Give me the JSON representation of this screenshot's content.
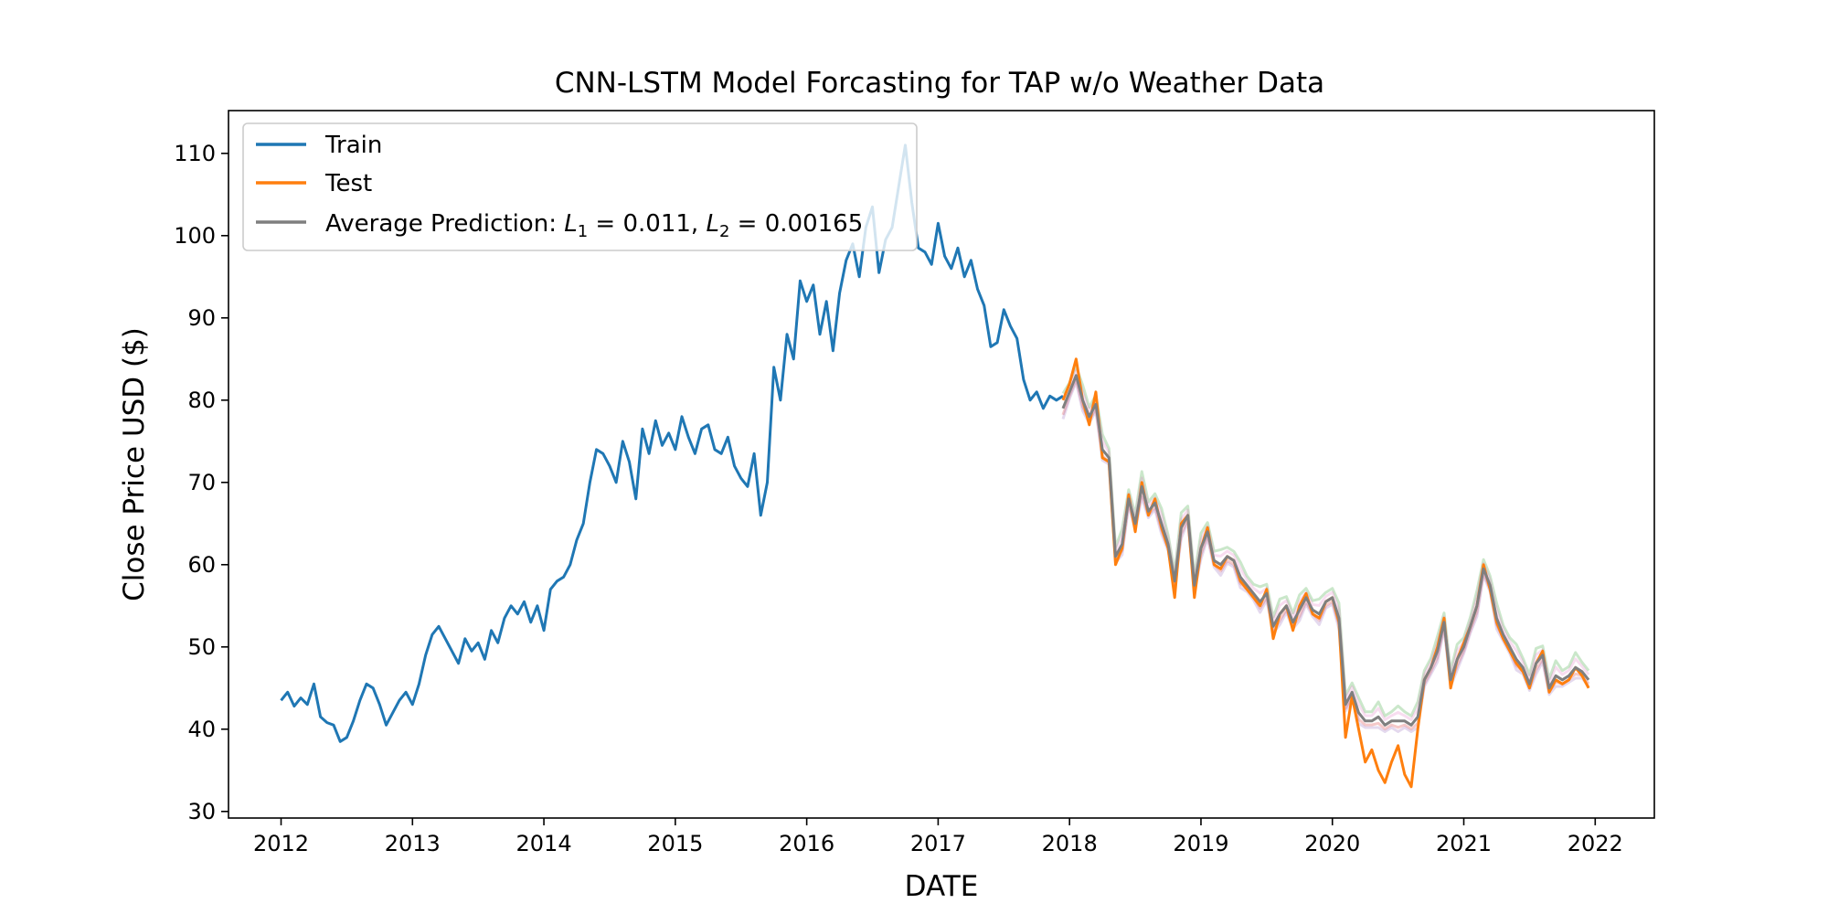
{
  "chart_data": {
    "type": "line",
    "title": "CNN-LSTM Model Forcasting for TAP w/o Weather Data",
    "xlabel": "DATE",
    "ylabel": "Close Price USD ($)",
    "xlim": [
      2011.6,
      2022.45
    ],
    "ylim": [
      29.2,
      115.2
    ],
    "x_ticks": [
      2012,
      2013,
      2014,
      2015,
      2016,
      2017,
      2018,
      2019,
      2020,
      2021,
      2022
    ],
    "x_tick_labels": [
      "2012",
      "2013",
      "2014",
      "2015",
      "2016",
      "2017",
      "2018",
      "2019",
      "2020",
      "2021",
      "2022"
    ],
    "y_ticks": [
      30,
      40,
      50,
      60,
      70,
      80,
      90,
      100,
      110
    ],
    "y_tick_labels": [
      "30",
      "40",
      "50",
      "60",
      "70",
      "80",
      "90",
      "100",
      "110"
    ],
    "grid": false,
    "legend_position": "top-left",
    "legend": {
      "train": "Train",
      "test": "Test",
      "avg_prefix": "Average Prediction: ",
      "l1_symbol": "L",
      "l1_sub": "1",
      "l1_value": " = 0.011, ",
      "l2_symbol": "L",
      "l2_sub": "2",
      "l2_value": " = 0.00165"
    },
    "colors": {
      "train": "#1f77b4",
      "test": "#ff7f0e",
      "average": "#7f7f7f",
      "runs": [
        "#2ca02c",
        "#d62728",
        "#9467bd",
        "#e377c2"
      ]
    },
    "series": [
      {
        "name": "Train",
        "x": [
          2012.0,
          2012.05,
          2012.1,
          2012.15,
          2012.2,
          2012.25,
          2012.3,
          2012.35,
          2012.4,
          2012.45,
          2012.5,
          2012.55,
          2012.6,
          2012.65,
          2012.7,
          2012.75,
          2012.8,
          2012.85,
          2012.9,
          2012.95,
          2013.0,
          2013.05,
          2013.1,
          2013.15,
          2013.2,
          2013.25,
          2013.3,
          2013.35,
          2013.4,
          2013.45,
          2013.5,
          2013.55,
          2013.6,
          2013.65,
          2013.7,
          2013.75,
          2013.8,
          2013.85,
          2013.9,
          2013.95,
          2014.0,
          2014.05,
          2014.1,
          2014.15,
          2014.2,
          2014.25,
          2014.3,
          2014.35,
          2014.4,
          2014.45,
          2014.5,
          2014.55,
          2014.6,
          2014.65,
          2014.7,
          2014.75,
          2014.8,
          2014.85,
          2014.9,
          2014.95,
          2015.0,
          2015.05,
          2015.1,
          2015.15,
          2015.2,
          2015.25,
          2015.3,
          2015.35,
          2015.4,
          2015.45,
          2015.5,
          2015.55,
          2015.6,
          2015.65,
          2015.7,
          2015.75,
          2015.8,
          2015.85,
          2015.9,
          2015.95,
          2016.0,
          2016.05,
          2016.1,
          2016.15,
          2016.2,
          2016.25,
          2016.3,
          2016.35,
          2016.4,
          2016.45,
          2016.5,
          2016.55,
          2016.6,
          2016.65,
          2016.7,
          2016.75,
          2016.8,
          2016.85,
          2016.9,
          2016.95,
          2017.0,
          2017.05,
          2017.1,
          2017.15,
          2017.2,
          2017.25,
          2017.3,
          2017.35,
          2017.4,
          2017.45,
          2017.5,
          2017.55,
          2017.6,
          2017.65,
          2017.7,
          2017.75,
          2017.8,
          2017.85,
          2017.9,
          2017.95
        ],
        "values": [
          43.5,
          44.5,
          42.8,
          43.8,
          43.0,
          45.5,
          41.5,
          40.8,
          40.5,
          38.5,
          39.0,
          41.0,
          43.5,
          45.5,
          45.0,
          43.0,
          40.5,
          42.0,
          43.5,
          44.5,
          43.0,
          45.5,
          49.0,
          51.5,
          52.5,
          51.0,
          49.5,
          48.0,
          51.0,
          49.5,
          50.5,
          48.5,
          52.0,
          50.5,
          53.5,
          55.0,
          54.0,
          55.5,
          53.0,
          55.0,
          52.0,
          57.0,
          58.0,
          58.5,
          60.0,
          63.0,
          65.0,
          70.0,
          74.0,
          73.5,
          72.0,
          70.0,
          75.0,
          72.5,
          68.0,
          76.5,
          73.5,
          77.5,
          74.5,
          76.0,
          74.0,
          78.0,
          75.5,
          73.5,
          76.5,
          77.0,
          74.0,
          73.5,
          75.5,
          72.0,
          70.5,
          69.5,
          73.5,
          66.0,
          70.0,
          84.0,
          80.0,
          88.0,
          85.0,
          94.5,
          92.0,
          94.0,
          88.0,
          92.0,
          86.0,
          93.0,
          97.0,
          99.0,
          95.0,
          101.0,
          103.5,
          95.5,
          99.5,
          101.0,
          106.0,
          111.0,
          104.0,
          98.5,
          98.0,
          96.5,
          101.5,
          97.5,
          96.0,
          98.5,
          95.0,
          97.0,
          93.5,
          91.5,
          86.5,
          87.0,
          91.0,
          89.0,
          87.5,
          82.5,
          80.0,
          81.0,
          79.0,
          80.5,
          80.0,
          80.5
        ]
      },
      {
        "name": "Test",
        "x": [
          2017.95,
          2018.0,
          2018.05,
          2018.1,
          2018.15,
          2018.2,
          2018.25,
          2018.3,
          2018.35,
          2018.4,
          2018.45,
          2018.5,
          2018.55,
          2018.6,
          2018.65,
          2018.7,
          2018.75,
          2018.8,
          2018.85,
          2018.9,
          2018.95,
          2019.0,
          2019.05,
          2019.1,
          2019.15,
          2019.2,
          2019.25,
          2019.3,
          2019.35,
          2019.4,
          2019.45,
          2019.5,
          2019.55,
          2019.6,
          2019.65,
          2019.7,
          2019.75,
          2019.8,
          2019.85,
          2019.9,
          2019.95,
          2020.0,
          2020.05,
          2020.1,
          2020.15,
          2020.2,
          2020.25,
          2020.3,
          2020.35,
          2020.4,
          2020.45,
          2020.5,
          2020.55,
          2020.6,
          2020.65,
          2020.7,
          2020.75,
          2020.8,
          2020.85,
          2020.9,
          2020.95,
          2021.0,
          2021.05,
          2021.1,
          2021.15,
          2021.2,
          2021.25,
          2021.3,
          2021.35,
          2021.4,
          2021.45,
          2021.5,
          2021.55,
          2021.6,
          2021.65,
          2021.7,
          2021.75,
          2021.8,
          2021.85,
          2021.9,
          2021.95
        ],
        "values": [
          80.0,
          82.0,
          85.0,
          80.0,
          77.0,
          81.0,
          73.0,
          72.5,
          60.0,
          62.0,
          68.5,
          64.0,
          70.0,
          66.0,
          68.0,
          64.5,
          62.0,
          56.0,
          65.0,
          66.0,
          56.0,
          62.0,
          64.5,
          60.0,
          59.5,
          61.0,
          60.5,
          58.0,
          57.0,
          56.0,
          55.0,
          57.0,
          51.0,
          54.0,
          55.0,
          52.0,
          55.0,
          56.5,
          54.0,
          53.5,
          55.5,
          56.0,
          53.0,
          39.0,
          44.0,
          40.0,
          36.0,
          37.5,
          35.0,
          33.5,
          36.0,
          38.0,
          34.5,
          33.0,
          40.0,
          46.0,
          47.5,
          50.0,
          53.5,
          45.0,
          48.5,
          50.5,
          52.5,
          55.0,
          60.0,
          57.0,
          53.0,
          51.0,
          49.5,
          48.0,
          47.0,
          45.0,
          48.0,
          49.5,
          44.5,
          46.0,
          45.5,
          46.0,
          47.5,
          46.5,
          45.0
        ]
      },
      {
        "name": "Average Prediction",
        "x": [
          2017.95,
          2018.0,
          2018.05,
          2018.1,
          2018.15,
          2018.2,
          2018.25,
          2018.3,
          2018.35,
          2018.4,
          2018.45,
          2018.5,
          2018.55,
          2018.6,
          2018.65,
          2018.7,
          2018.75,
          2018.8,
          2018.85,
          2018.9,
          2018.95,
          2019.0,
          2019.05,
          2019.1,
          2019.15,
          2019.2,
          2019.25,
          2019.3,
          2019.35,
          2019.4,
          2019.45,
          2019.5,
          2019.55,
          2019.6,
          2019.65,
          2019.7,
          2019.75,
          2019.8,
          2019.85,
          2019.9,
          2019.95,
          2020.0,
          2020.05,
          2020.1,
          2020.15,
          2020.2,
          2020.25,
          2020.3,
          2020.35,
          2020.4,
          2020.45,
          2020.5,
          2020.55,
          2020.6,
          2020.65,
          2020.7,
          2020.75,
          2020.8,
          2020.85,
          2020.9,
          2020.95,
          2021.0,
          2021.05,
          2021.1,
          2021.15,
          2021.2,
          2021.25,
          2021.3,
          2021.35,
          2021.4,
          2021.45,
          2021.5,
          2021.55,
          2021.6,
          2021.65,
          2021.7,
          2021.75,
          2021.8,
          2021.85,
          2021.9,
          2021.95
        ],
        "values": [
          79.0,
          81.0,
          83.0,
          80.0,
          78.0,
          79.5,
          74.0,
          73.0,
          61.0,
          62.5,
          68.0,
          65.0,
          69.5,
          66.5,
          67.5,
          65.0,
          62.5,
          58.0,
          64.5,
          66.0,
          57.5,
          62.0,
          64.0,
          60.5,
          60.0,
          61.0,
          60.5,
          58.5,
          57.5,
          56.5,
          55.5,
          56.5,
          52.5,
          54.0,
          55.0,
          53.0,
          54.5,
          56.0,
          54.5,
          54.0,
          55.5,
          56.0,
          53.5,
          43.0,
          44.5,
          42.0,
          41.0,
          41.0,
          41.5,
          40.5,
          41.0,
          41.0,
          41.0,
          40.5,
          41.5,
          46.0,
          47.5,
          49.5,
          53.0,
          46.0,
          48.5,
          50.0,
          52.5,
          55.0,
          59.5,
          57.5,
          53.5,
          51.5,
          50.0,
          48.5,
          47.5,
          45.5,
          48.0,
          49.0,
          45.0,
          46.5,
          46.0,
          46.5,
          47.5,
          47.0,
          46.0
        ]
      }
    ]
  }
}
